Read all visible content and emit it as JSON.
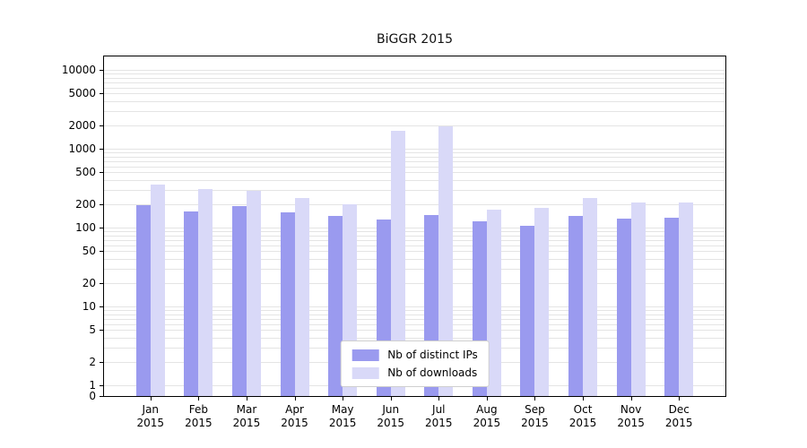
{
  "title": "BiGGR 2015",
  "chart_data": {
    "type": "bar",
    "title": "BiGGR 2015",
    "yscale": "symlog",
    "grid": true,
    "legend_position": "lower center",
    "year": "2015",
    "categories": [
      "Jan",
      "Feb",
      "Mar",
      "Apr",
      "May",
      "Jun",
      "Jul",
      "Aug",
      "Sep",
      "Oct",
      "Nov",
      "Dec"
    ],
    "yticks": [
      0,
      1,
      2,
      5,
      10,
      20,
      50,
      100,
      200,
      500,
      1000,
      2000,
      5000,
      10000
    ],
    "ylim": [
      0,
      10000
    ],
    "series": [
      {
        "name": "Nb of distinct IPs",
        "color": "#9a9aef",
        "values": [
          190,
          160,
          185,
          155,
          140,
          125,
          145,
          120,
          105,
          140,
          130,
          135
        ]
      },
      {
        "name": "Nb of downloads",
        "color": "#d9d9f8",
        "values": [
          355,
          310,
          290,
          235,
          200,
          1700,
          1900,
          170,
          180,
          240,
          210,
          210
        ]
      }
    ]
  }
}
